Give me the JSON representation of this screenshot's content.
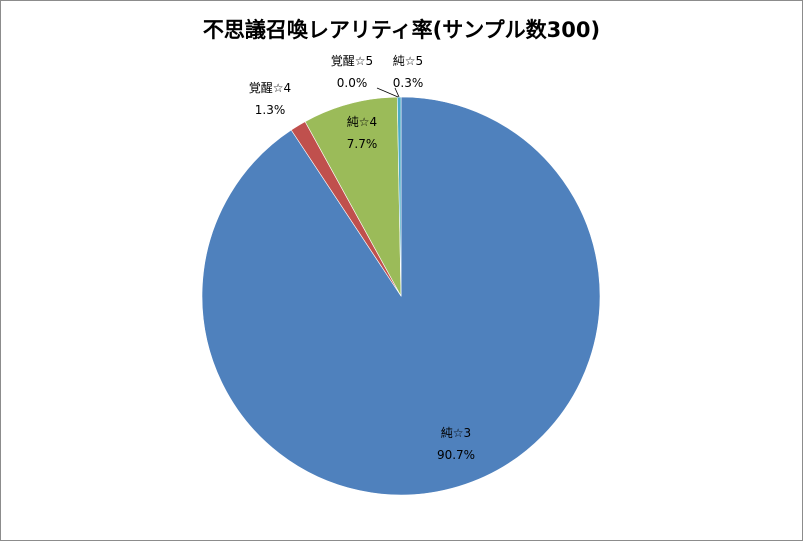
{
  "chart_data": {
    "type": "pie",
    "title": "不思議召喚レアリティ率(サンプル数300)",
    "slices": [
      {
        "name": "純☆3",
        "value": 90.7,
        "label": "90.7%",
        "color": "#4f81bd"
      },
      {
        "name": "覚醒☆4",
        "value": 1.3,
        "label": "1.3%",
        "color": "#c0504d"
      },
      {
        "name": "純☆4",
        "value": 7.7,
        "label": "7.7%",
        "color": "#9bbb59"
      },
      {
        "name": "覚醒☆5",
        "value": 0.0,
        "label": "0.0%",
        "color": "#8064a2"
      },
      {
        "name": "純☆5",
        "value": 0.3,
        "label": "0.3%",
        "color": "#4bacc6"
      }
    ]
  }
}
